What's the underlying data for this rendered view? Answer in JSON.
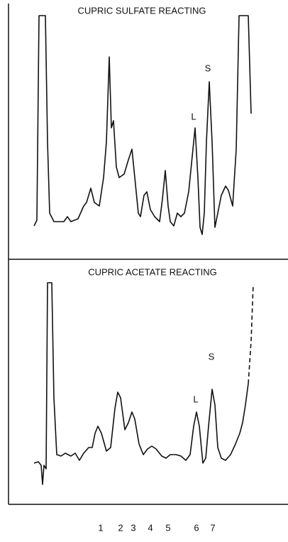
{
  "panels": [
    {
      "title": "CUPRIC SULFATE REACTING",
      "peak_labels": [
        "L",
        "S"
      ]
    },
    {
      "title": "CUPRIC ACETATE REACTING",
      "peak_labels": [
        "L",
        "S"
      ]
    }
  ],
  "x_labels": [
    "1",
    "2",
    "3",
    "4",
    "5",
    "6",
    "7"
  ]
}
